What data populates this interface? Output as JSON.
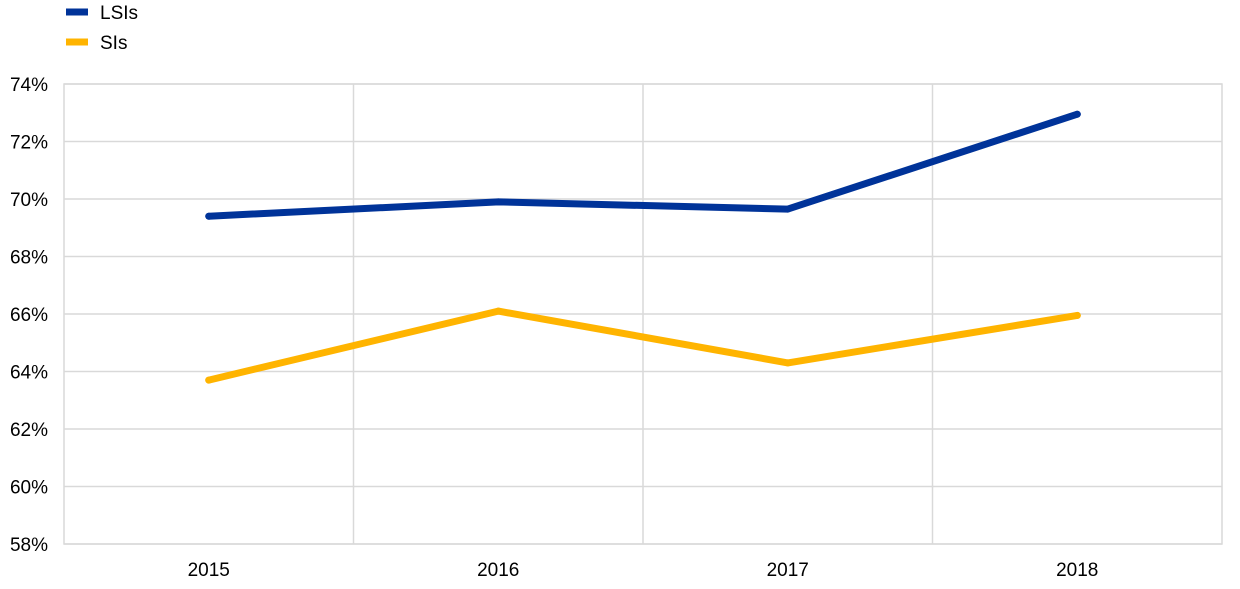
{
  "chart_data": {
    "type": "line",
    "title": "",
    "xlabel": "",
    "ylabel": "",
    "categories": [
      "2015",
      "2016",
      "2017",
      "2018"
    ],
    "series": [
      {
        "name": "LSIs",
        "color": "#003399",
        "values": [
          69.4,
          69.9,
          69.65,
          72.95
        ]
      },
      {
        "name": "SIs",
        "color": "#FFB400",
        "values": [
          63.7,
          66.1,
          64.3,
          65.95
        ]
      }
    ],
    "ylim": [
      58,
      74
    ],
    "yticks": [
      58,
      60,
      62,
      64,
      66,
      68,
      70,
      72,
      74
    ],
    "ytick_labels": [
      "58%",
      "60%",
      "62%",
      "64%",
      "66%",
      "68%",
      "70%",
      "72%",
      "74%"
    ],
    "grid": true,
    "legend_position": "top-left",
    "colors": {
      "gridline": "#d9d9d9",
      "axis": "#d9d9d9"
    }
  }
}
